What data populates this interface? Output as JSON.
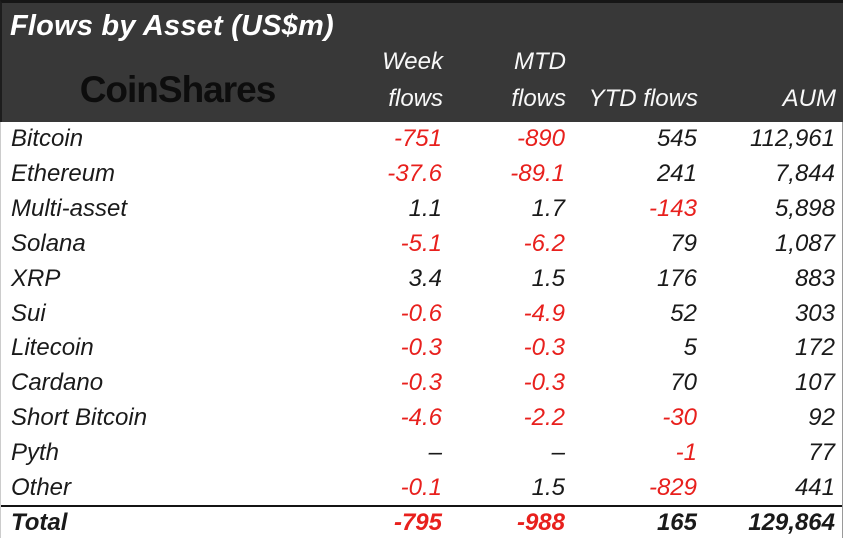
{
  "title": "Flows by Asset (US$m)",
  "logo_text": "CoinShares",
  "colors": {
    "header_background": "#383838",
    "header_text": "#ffffff",
    "logo_text": "#0d0d0d",
    "body_text": "#1a1a1a",
    "negative_value": "#e8201d"
  },
  "table": {
    "columns": [
      {
        "line1": "Week",
        "line2": "flows"
      },
      {
        "line1": "MTD",
        "line2": "flows"
      },
      {
        "line1": "",
        "line2": "YTD flows"
      },
      {
        "line1": "",
        "line2": "AUM"
      }
    ],
    "rows": [
      {
        "asset": "Bitcoin",
        "week": "-751",
        "mtd": "-890",
        "ytd": "545",
        "aum": "112,961"
      },
      {
        "asset": "Ethereum",
        "week": "-37.6",
        "mtd": "-89.1",
        "ytd": "241",
        "aum": "7,844"
      },
      {
        "asset": "Multi-asset",
        "week": "1.1",
        "mtd": "1.7",
        "ytd": "-143",
        "aum": "5,898"
      },
      {
        "asset": "Solana",
        "week": "-5.1",
        "mtd": "-6.2",
        "ytd": "79",
        "aum": "1,087"
      },
      {
        "asset": "XRP",
        "week": "3.4",
        "mtd": "1.5",
        "ytd": "176",
        "aum": "883"
      },
      {
        "asset": "Sui",
        "week": "-0.6",
        "mtd": "-4.9",
        "ytd": "52",
        "aum": "303"
      },
      {
        "asset": "Litecoin",
        "week": "-0.3",
        "mtd": "-0.3",
        "ytd": "5",
        "aum": "172"
      },
      {
        "asset": "Cardano",
        "week": "-0.3",
        "mtd": "-0.3",
        "ytd": "70",
        "aum": "107"
      },
      {
        "asset": "Short Bitcoin",
        "week": "-4.6",
        "mtd": "-2.2",
        "ytd": "-30",
        "aum": "92"
      },
      {
        "asset": "Pyth",
        "week": "–",
        "mtd": "–",
        "ytd": "-1",
        "aum": "77"
      },
      {
        "asset": "Other",
        "week": "-0.1",
        "mtd": "1.5",
        "ytd": "-829",
        "aum": "441"
      }
    ],
    "total_row": {
      "asset": "Total",
      "week": "-795",
      "mtd": "-988",
      "ytd": "165",
      "aum": "129,864"
    }
  },
  "chart_data": {
    "type": "table",
    "title": "Flows by Asset (US$m)",
    "columns": [
      "Asset",
      "Week flows",
      "MTD flows",
      "YTD flows",
      "AUM"
    ],
    "rows": [
      [
        "Bitcoin",
        -751,
        -890,
        545,
        112961
      ],
      [
        "Ethereum",
        -37.6,
        -89.1,
        241,
        7844
      ],
      [
        "Multi-asset",
        1.1,
        1.7,
        -143,
        5898
      ],
      [
        "Solana",
        -5.1,
        -6.2,
        79,
        1087
      ],
      [
        "XRP",
        3.4,
        1.5,
        176,
        883
      ],
      [
        "Sui",
        -0.6,
        -4.9,
        52,
        303
      ],
      [
        "Litecoin",
        -0.3,
        -0.3,
        5,
        172
      ],
      [
        "Cardano",
        -0.3,
        -0.3,
        70,
        107
      ],
      [
        "Short Bitcoin",
        -4.6,
        -2.2,
        -30,
        92
      ],
      [
        "Pyth",
        null,
        null,
        -1,
        77
      ],
      [
        "Other",
        -0.1,
        1.5,
        -829,
        441
      ],
      [
        "Total",
        -795,
        -988,
        165,
        129864
      ]
    ]
  }
}
